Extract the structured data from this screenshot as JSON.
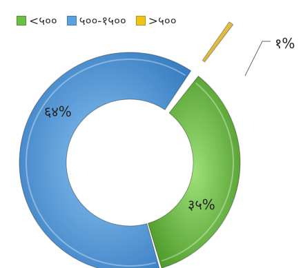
{
  "chart_data": {
    "type": "pie",
    "donut": true,
    "exploded_slice": 2,
    "legend_position": "top-left",
    "categories": [
      "<५००",
      "५००-१५००",
      ">५००"
    ],
    "values": [
      35,
      64,
      1
    ],
    "data_labels": [
      "३५%",
      "६४%",
      "१%"
    ],
    "colors": [
      "#6cbf45",
      "#5aa3e3",
      "#f0c419"
    ],
    "legend_order": [
      0,
      1,
      2
    ]
  },
  "legend": {
    "items": [
      {
        "label": "<५००",
        "color": "#6cbf45"
      },
      {
        "label": "५००-१५००",
        "color": "#5aa3e3"
      },
      {
        "label": ">५००",
        "color": "#f0c419"
      }
    ]
  }
}
